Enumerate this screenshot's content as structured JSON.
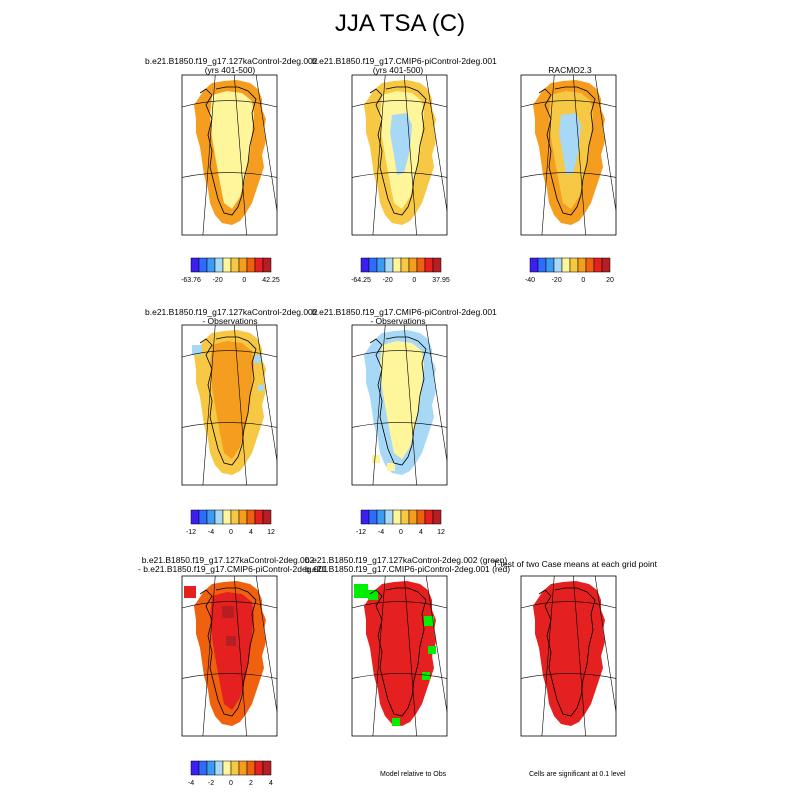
{
  "page_title": "JJA TSA (C)",
  "colors": {
    "deep_blue": "#3c1ef0",
    "blue": "#2f6bff",
    "mid_blue": "#3c9af0",
    "light_blue": "#a7d8f5",
    "pale_yellow": "#fff59a",
    "yellow_orange": "#f7c843",
    "orange": "#f59d1e",
    "dark_orange": "#f0610f",
    "red": "#e52020",
    "dark_red": "#b51e23",
    "green": "#00ee00"
  },
  "chart_data": [
    {
      "type": "heatmap",
      "title": "b.e21.B1850.f19_g17.127kaControl-2deg.002",
      "subtitle": "(yrs 401-500)",
      "colorbar_labels": [
        "-63.76",
        "-20",
        "0",
        "42.25"
      ]
    },
    {
      "type": "heatmap",
      "title": "b.e21.B1850.f19_g17.CMIP6-piControl-2deg.001",
      "subtitle": "(yrs 401-500)",
      "colorbar_labels": [
        "-64.25",
        "-20",
        "0",
        "37.95"
      ]
    },
    {
      "type": "heatmap",
      "title": "RACMO2.3",
      "subtitle": "",
      "colorbar_labels": [
        "-40",
        "-20",
        "0",
        "20"
      ]
    },
    {
      "type": "heatmap",
      "title": "b.e21.B1850.f19_g17.127kaControl-2deg.002",
      "subtitle": "- Observations",
      "colorbar_labels": [
        "-12",
        "-4",
        "0",
        "4",
        "12"
      ]
    },
    {
      "type": "heatmap",
      "title": "b.e21.B1850.f19_g17.CMIP6-piControl-2deg.001",
      "subtitle": "- Observations",
      "colorbar_labels": [
        "-12",
        "-4",
        "0",
        "4",
        "12"
      ]
    },
    {
      "type": "heatmap",
      "title": "b.e21.B1850.f19_g17.127kaControl-2deg.002",
      "subtitle": "- b.e21.B1850.f19_g17.CMIP6-piControl-2deg.001",
      "colorbar_labels": [
        "-4",
        "-2",
        "0",
        "2",
        "4"
      ]
    },
    {
      "type": "heatmap",
      "title": "b.e21.B1850.f19_g17.127kaControl-2deg.002 (green)",
      "subtitle": "b.e21.B1850.f19_g17.CMIP6-piControl-2deg.001 (red)",
      "note": "Model relative to Obs"
    },
    {
      "type": "heatmap",
      "title": "T-test of two Case means at each grid point",
      "subtitle": "",
      "note": "Cells are significant at 0.1 level"
    }
  ]
}
